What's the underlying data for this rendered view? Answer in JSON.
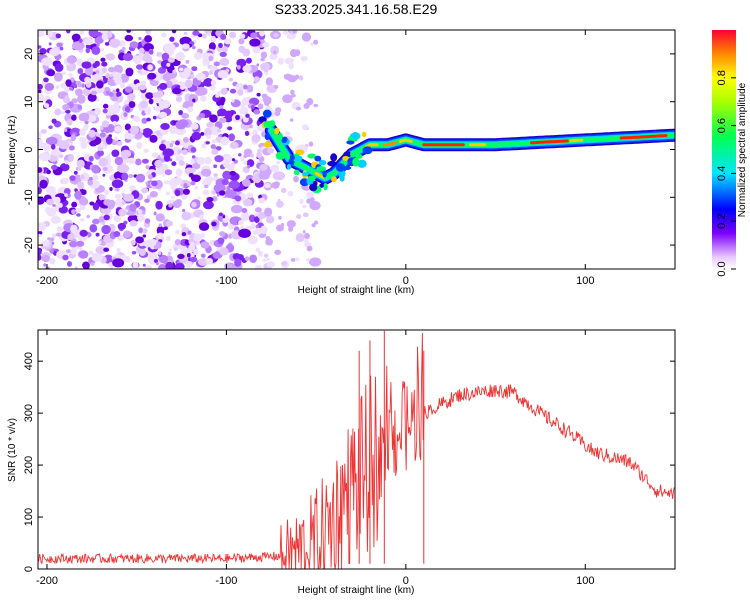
{
  "title": "S233.2025.341.16.58.E29",
  "chart_data": [
    {
      "type": "heatmap",
      "title": "",
      "xlabel": "Height of straight line (km)",
      "ylabel": "Frequency (Hz)",
      "xlim": [
        -205,
        150
      ],
      "ylim": [
        -25,
        25
      ],
      "xticks": [
        -200,
        -100,
        0,
        100
      ],
      "yticks": [
        -20,
        -10,
        0,
        10,
        20
      ],
      "colorbar": {
        "label": "Normalized spectral amplitude",
        "range": [
          0.0,
          1.0
        ],
        "ticks": [
          "0.0",
          "0.2",
          "0.4",
          "0.6",
          "0.8"
        ],
        "tick_values": [
          0.0,
          0.2,
          0.4,
          0.6,
          0.8
        ]
      },
      "noise_region_x": [
        -205,
        -75
      ],
      "signal_track": [
        {
          "x": -75,
          "y": 4
        },
        {
          "x": -70,
          "y": 1
        },
        {
          "x": -65,
          "y": -2
        },
        {
          "x": -60,
          "y": -3
        },
        {
          "x": -55,
          "y": -4
        },
        {
          "x": -50,
          "y": -5
        },
        {
          "x": -45,
          "y": -6
        },
        {
          "x": -40,
          "y": -5
        },
        {
          "x": -35,
          "y": -3
        },
        {
          "x": -30,
          "y": -1
        },
        {
          "x": -25,
          "y": 0
        },
        {
          "x": -20,
          "y": 1
        },
        {
          "x": -10,
          "y": 1
        },
        {
          "x": 0,
          "y": 2
        },
        {
          "x": 10,
          "y": 1
        },
        {
          "x": 50,
          "y": 1
        },
        {
          "x": 100,
          "y": 2
        },
        {
          "x": 150,
          "y": 3
        }
      ]
    },
    {
      "type": "line",
      "title": "",
      "xlabel": "Height of straight line (km)",
      "ylabel": "SNR (10 * v/v)",
      "xlim": [
        -205,
        150
      ],
      "ylim": [
        0,
        460
      ],
      "xticks": [
        -200,
        -100,
        0,
        100
      ],
      "yticks": [
        0,
        100,
        200,
        300,
        400
      ],
      "color": "#ee3333",
      "envelope": [
        {
          "x": -205,
          "y": 20
        },
        {
          "x": -150,
          "y": 20
        },
        {
          "x": -100,
          "y": 20
        },
        {
          "x": -70,
          "y": 25
        },
        {
          "x": -55,
          "y": 40
        },
        {
          "x": -45,
          "y": 70
        },
        {
          "x": -35,
          "y": 130
        },
        {
          "x": -25,
          "y": 180
        },
        {
          "x": -15,
          "y": 220
        },
        {
          "x": -5,
          "y": 260
        },
        {
          "x": 10,
          "y": 300
        },
        {
          "x": 30,
          "y": 335
        },
        {
          "x": 50,
          "y": 345
        },
        {
          "x": 60,
          "y": 340
        },
        {
          "x": 75,
          "y": 300
        },
        {
          "x": 90,
          "y": 265
        },
        {
          "x": 105,
          "y": 225
        },
        {
          "x": 125,
          "y": 205
        },
        {
          "x": 140,
          "y": 150
        },
        {
          "x": 150,
          "y": 145
        }
      ],
      "spikes": [
        {
          "x": -26,
          "y": 420
        },
        {
          "x": -20,
          "y": 440
        },
        {
          "x": -12,
          "y": 460
        },
        {
          "x": 10,
          "y": 420
        }
      ]
    }
  ]
}
